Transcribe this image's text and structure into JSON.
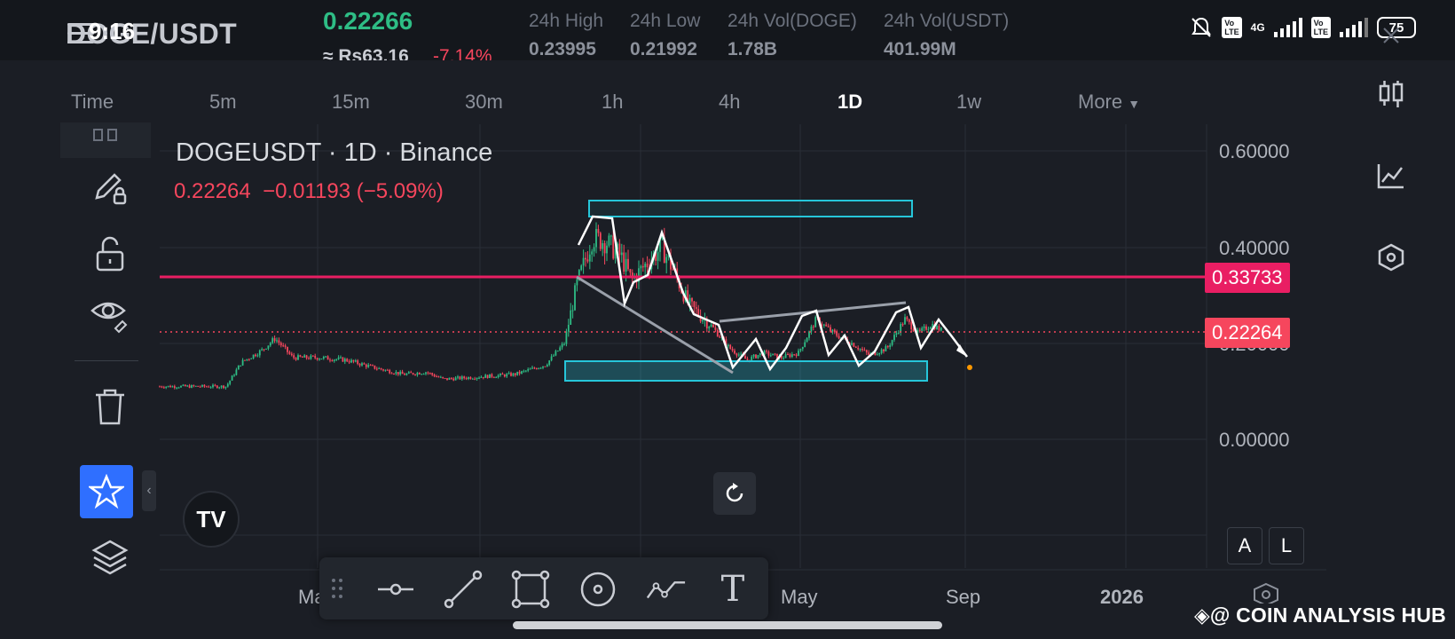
{
  "status_bar": {
    "time": "9:16",
    "network": "4G",
    "battery": "75"
  },
  "header": {
    "pair": "DOGE/USDT",
    "last_price": "0.22266",
    "fiat_price": "≈ Rs63.16",
    "change_pct": "-7.14%",
    "stats": [
      {
        "label": "24h High",
        "value": "0.23995"
      },
      {
        "label": "24h Low",
        "value": "0.21992"
      },
      {
        "label": "24h Vol(DOGE)",
        "value": "1.78B"
      },
      {
        "label": "24h Vol(USDT)",
        "value": "401.99M"
      }
    ]
  },
  "timeframes": {
    "items": [
      "Time",
      "5m",
      "15m",
      "30m",
      "1h",
      "4h",
      "1D",
      "1w"
    ],
    "active": "1D",
    "more_label": "More"
  },
  "chart": {
    "title": "DOGEUSDT · 1D · Binance",
    "legend_price": "0.22264",
    "legend_change": "−0.01193 (−5.09%)",
    "price_axis": [
      "0.60000",
      "0.40000",
      "0.20000",
      "0.00000"
    ],
    "time_axis": [
      "Ma",
      "May",
      "Sep",
      "2026"
    ],
    "horizontal_line_label": "0.33733",
    "last_price_label": "0.22264",
    "colors": {
      "up": "#2ebd85",
      "down": "#f6465d",
      "hline": "#e91e63",
      "box": "#26c6da",
      "background": "#1b1e25"
    }
  },
  "scale_buttons": {
    "auto": "A",
    "log": "L"
  },
  "drawing_tools": [
    "horizontal-line-icon",
    "trend-line-icon",
    "rectangle-icon",
    "circle-icon",
    "path-icon",
    "text-icon"
  ],
  "left_tools": [
    "drawing-lock-icon",
    "pencil-lock-icon",
    "lock-icon",
    "eye-icon",
    "trash-icon",
    "star-icon",
    "layers-icon"
  ],
  "right_tools": [
    "candles-icon",
    "indicator-icon",
    "settings-hex-icon"
  ],
  "text_tool_glyph": "T",
  "tv_logo": "TV",
  "watermark": "@ COIN ANALYSIS HUB"
}
